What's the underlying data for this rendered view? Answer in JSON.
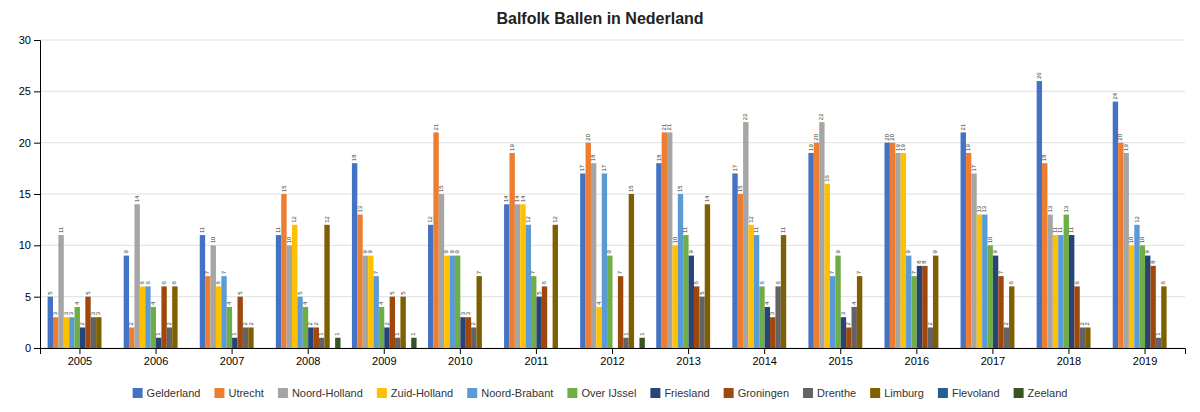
{
  "chart_data": {
    "type": "bar",
    "title": "Balfolk Ballen in Nederland",
    "categories": [
      "2005",
      "2006",
      "2007",
      "2008",
      "2009",
      "2010",
      "2011",
      "2012",
      "2013",
      "2014",
      "2015",
      "2016",
      "2017",
      "2018",
      "2019"
    ],
    "series": [
      {
        "name": "Gelderland",
        "color": "#4472C4",
        "values": [
          5,
          9,
          11,
          11,
          18,
          12,
          14,
          17,
          18,
          17,
          19,
          20,
          21,
          26,
          24
        ]
      },
      {
        "name": "Utrecht",
        "color": "#ED7D31",
        "values": [
          3,
          2,
          7,
          15,
          13,
          21,
          19,
          20,
          21,
          15,
          20,
          20,
          19,
          18,
          20
        ]
      },
      {
        "name": "Noord-Holland",
        "color": "#A5A5A5",
        "values": [
          11,
          14,
          10,
          10,
          9,
          15,
          14,
          18,
          21,
          22,
          22,
          19,
          17,
          13,
          19
        ]
      },
      {
        "name": "Zuid-Holland",
        "color": "#FFC000",
        "values": [
          3,
          6,
          6,
          12,
          9,
          9,
          14,
          4,
          10,
          12,
          16,
          19,
          13,
          11,
          10
        ]
      },
      {
        "name": "Noord-Brabant",
        "color": "#5B9BD5",
        "values": [
          3,
          6,
          7,
          5,
          7,
          9,
          12,
          17,
          15,
          11,
          7,
          9,
          13,
          11,
          12
        ]
      },
      {
        "name": "Over IJssel",
        "color": "#70AD47",
        "values": [
          4,
          4,
          4,
          4,
          4,
          9,
          7,
          9,
          11,
          6,
          9,
          7,
          10,
          13,
          10
        ]
      },
      {
        "name": "Friesland",
        "color": "#264478",
        "values": [
          2,
          1,
          1,
          2,
          2,
          3,
          5,
          0,
          9,
          4,
          3,
          8,
          9,
          11,
          9
        ],
        "value_labels": [
          "2",
          "1",
          "1",
          "2",
          "2",
          "3",
          "5",
          null,
          "9",
          "4",
          "3",
          "8",
          "9",
          "11",
          "9"
        ]
      },
      {
        "name": "Groningen",
        "color": "#9E480E",
        "values": [
          5,
          6,
          5,
          2,
          5,
          3,
          6,
          7,
          6,
          3,
          2,
          8,
          7,
          6,
          8
        ]
      },
      {
        "name": "Drenthe",
        "color": "#636363",
        "values": [
          3,
          2,
          2,
          1,
          1,
          2,
          0,
          1,
          5,
          6,
          4,
          2,
          2,
          2,
          1
        ],
        "value_labels": [
          "3",
          "2",
          "2",
          "1",
          "1",
          "2",
          null,
          "1",
          "5",
          "6",
          "4",
          "2",
          "2",
          "2",
          "1"
        ]
      },
      {
        "name": "Limburg",
        "color": "#7F6000",
        "values": [
          3,
          6,
          2,
          12,
          5,
          7,
          12,
          15,
          14,
          11,
          7,
          9,
          6,
          2,
          6
        ]
      },
      {
        "name": "Flevoland",
        "color": "#255E91",
        "values": [
          0,
          0,
          0,
          0,
          0,
          0,
          0,
          0,
          0,
          0,
          0,
          0,
          0,
          0,
          0
        ],
        "value_labels": [
          null,
          null,
          null,
          null,
          null,
          null,
          null,
          null,
          null,
          null,
          null,
          null,
          null,
          null,
          null
        ]
      },
      {
        "name": "Zeeland",
        "color": "#375623",
        "values": [
          0,
          0,
          0,
          1,
          1,
          0,
          0,
          1,
          0,
          0,
          0,
          0,
          0,
          0,
          0
        ],
        "value_labels": [
          null,
          null,
          null,
          "1",
          "1",
          null,
          null,
          "1",
          null,
          null,
          null,
          null,
          null,
          null,
          null
        ]
      }
    ],
    "ylim": [
      0,
      30
    ],
    "yticks": [
      0,
      5,
      10,
      15,
      20,
      25,
      30
    ],
    "grid": true,
    "legend": "bottom",
    "data_labels": true
  }
}
